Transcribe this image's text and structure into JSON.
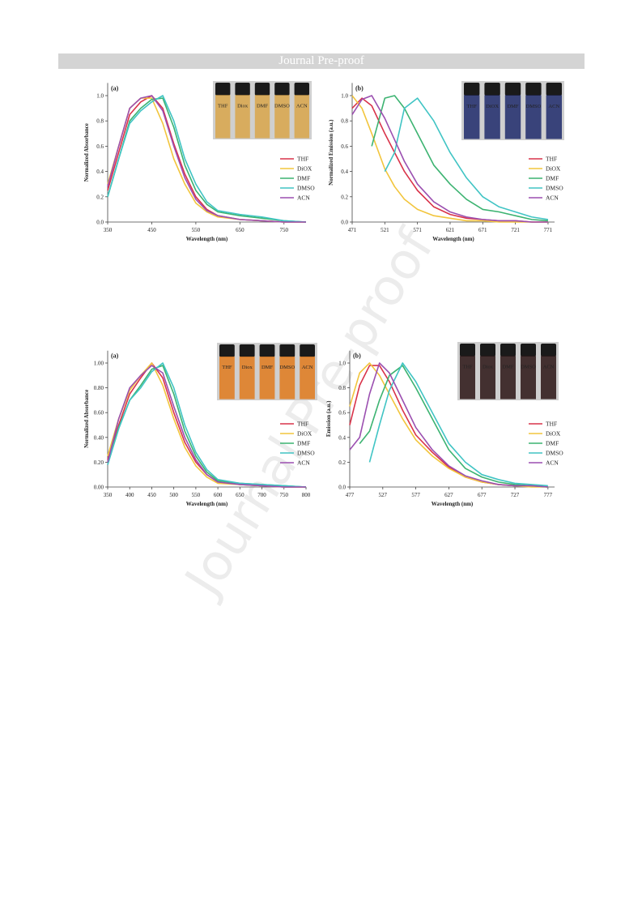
{
  "header": "Journal Pre-proof",
  "watermark": "Journal Pre-proof",
  "chart_data": [
    {
      "type": "line",
      "panel": "(a)",
      "x_label": "Wavelength (nm)",
      "y_label": "Normalized Absorbance",
      "inset_labels": [
        "THF",
        "Diox",
        "DMF",
        "DMSO",
        "ACN"
      ],
      "inset_color": "#d9a64a",
      "x": [
        350,
        375,
        400,
        425,
        450,
        475,
        500,
        525,
        550,
        575,
        600,
        650,
        700,
        750,
        800
      ],
      "series": [
        {
          "name": "THF",
          "color": "#d9334a",
          "values": [
            0.25,
            0.55,
            0.85,
            0.95,
            1.0,
            0.9,
            0.62,
            0.38,
            0.2,
            0.1,
            0.05,
            0.02,
            0.01,
            0,
            0
          ]
        },
        {
          "name": "DiOX",
          "color": "#f2c53d",
          "values": [
            0.3,
            0.6,
            0.9,
            0.98,
            0.98,
            0.78,
            0.5,
            0.3,
            0.15,
            0.08,
            0.04,
            0.02,
            0.01,
            0,
            0
          ]
        },
        {
          "name": "DMF",
          "color": "#3cb371",
          "values": [
            0.2,
            0.5,
            0.8,
            0.9,
            0.97,
            0.98,
            0.75,
            0.45,
            0.25,
            0.14,
            0.08,
            0.05,
            0.03,
            0.01,
            0
          ]
        },
        {
          "name": "DMSO",
          "color": "#40c4c4",
          "values": [
            0.2,
            0.5,
            0.78,
            0.88,
            0.95,
            1.0,
            0.8,
            0.5,
            0.3,
            0.16,
            0.09,
            0.06,
            0.04,
            0.01,
            0
          ]
        },
        {
          "name": "ACN",
          "color": "#9b4fb0",
          "values": [
            0.28,
            0.6,
            0.9,
            0.98,
            1.0,
            0.88,
            0.6,
            0.35,
            0.18,
            0.09,
            0.05,
            0.02,
            0.01,
            0,
            0
          ]
        }
      ],
      "xlim": [
        350,
        800
      ],
      "xticks": [
        350,
        450,
        550,
        650,
        750
      ],
      "ylim": [
        0,
        1.1
      ],
      "yticks": [
        {
          "value": 0,
          "label": "0.0"
        },
        0.2,
        0.4,
        0.6,
        0.8,
        {
          "value": 1,
          "label": "1.0"
        }
      ],
      "legend": "right"
    },
    {
      "type": "line",
      "panel": "(b)",
      "x_label": "Wavelength (nm)",
      "y_label": "Normalized Emission (a.u.)",
      "inset_labels": [
        "THF",
        "DiOX",
        "DMF",
        "DMSO",
        "ACN"
      ],
      "inset_color": "#1f2a6b",
      "x": [
        471,
        486,
        501,
        521,
        536,
        551,
        571,
        596,
        621,
        646,
        671,
        696,
        721,
        746,
        771
      ],
      "series": [
        {
          "name": "THF",
          "color": "#d9334a",
          "values": [
            0.9,
            0.98,
            0.92,
            0.7,
            0.55,
            0.4,
            0.25,
            0.12,
            0.06,
            0.03,
            0.02,
            0.01,
            0.01,
            0,
            0
          ]
        },
        {
          "name": "DiOX",
          "color": "#f2c53d",
          "values": [
            1.0,
            0.9,
            0.7,
            0.42,
            0.28,
            0.18,
            0.1,
            0.05,
            0.03,
            0.01,
            0.01,
            0,
            0,
            0,
            0
          ]
        },
        {
          "name": "DMF",
          "color": "#3cb371",
          "values": [
            null,
            null,
            0.6,
            0.98,
            1.0,
            0.9,
            0.7,
            0.45,
            0.3,
            0.18,
            0.1,
            0.08,
            0.05,
            0.02,
            0.01
          ]
        },
        {
          "name": "DMSO",
          "color": "#40c4c4",
          "values": [
            null,
            null,
            null,
            0.4,
            0.55,
            0.9,
            0.98,
            0.8,
            0.55,
            0.35,
            0.2,
            0.12,
            0.08,
            0.04,
            0.02
          ]
        },
        {
          "name": "ACN",
          "color": "#9b4fb0",
          "values": [
            0.85,
            0.97,
            1.0,
            0.82,
            0.65,
            0.48,
            0.3,
            0.16,
            0.08,
            0.04,
            0.02,
            0.01,
            0.01,
            0,
            0
          ]
        }
      ],
      "xlim": [
        471,
        781
      ],
      "xticks": [
        471,
        521,
        571,
        621,
        671,
        721,
        771
      ],
      "ylim": [
        0,
        1.1
      ],
      "yticks": [
        {
          "value": 0,
          "label": "0.0"
        },
        0.2,
        0.4,
        0.6,
        0.8,
        {
          "value": 1,
          "label": "1.0"
        }
      ],
      "legend": "right"
    },
    {
      "type": "line",
      "panel": "(a)",
      "x_label": "Wavelength (nm)",
      "y_label": "Normalized Absorbance",
      "inset_labels": [
        "THF",
        "Diox",
        "DMF",
        "DMSO",
        "ACN"
      ],
      "inset_color": "#e07a1c",
      "x": [
        350,
        375,
        400,
        425,
        450,
        475,
        500,
        525,
        550,
        575,
        600,
        650,
        700,
        750,
        800
      ],
      "series": [
        {
          "name": "THF",
          "color": "#d9334a",
          "values": [
            0.22,
            0.5,
            0.75,
            0.88,
            1.0,
            0.88,
            0.6,
            0.36,
            0.2,
            0.1,
            0.04,
            0.02,
            0.01,
            0,
            0
          ]
        },
        {
          "name": "DiOX",
          "color": "#f2c53d",
          "values": [
            0.25,
            0.55,
            0.78,
            0.9,
            1.0,
            0.82,
            0.55,
            0.32,
            0.17,
            0.08,
            0.03,
            0.02,
            0.01,
            0,
            0
          ]
        },
        {
          "name": "DMF",
          "color": "#3cb371",
          "values": [
            0.18,
            0.48,
            0.7,
            0.82,
            0.95,
            0.98,
            0.75,
            0.45,
            0.25,
            0.12,
            0.05,
            0.03,
            0.02,
            0.01,
            0
          ]
        },
        {
          "name": "DMSO",
          "color": "#40c4c4",
          "values": [
            0.18,
            0.47,
            0.7,
            0.8,
            0.93,
            1.0,
            0.8,
            0.5,
            0.28,
            0.14,
            0.06,
            0.03,
            0.02,
            0.01,
            0
          ]
        },
        {
          "name": "ACN",
          "color": "#9b4fb0",
          "values": [
            0.2,
            0.55,
            0.8,
            0.9,
            0.98,
            0.92,
            0.65,
            0.4,
            0.22,
            0.1,
            0.04,
            0.02,
            0.01,
            0,
            0
          ]
        }
      ],
      "xlim": [
        350,
        800
      ],
      "xticks": [
        350,
        400,
        450,
        500,
        550,
        600,
        650,
        700,
        750,
        800
      ],
      "ylim": [
        0,
        1.1
      ],
      "yticks": [
        {
          "value": 0,
          "label": "0.00"
        },
        {
          "value": 0.2,
          "label": "0.20"
        },
        {
          "value": 0.4,
          "label": "0.40"
        },
        {
          "value": 0.6,
          "label": "0.60"
        },
        {
          "value": 0.8,
          "label": "0.80"
        },
        {
          "value": 1,
          "label": "1.00"
        }
      ],
      "legend": "right"
    },
    {
      "type": "line",
      "panel": "(b)",
      "x_label": "Wavelength (nm)",
      "y_label": "Emission (a.u.)",
      "inset_labels": [
        "THF",
        "Diox",
        "DMF",
        "DMSO",
        "ACN"
      ],
      "inset_color": "#2a1414",
      "x": [
        477,
        492,
        507,
        522,
        537,
        557,
        577,
        602,
        627,
        652,
        677,
        702,
        727,
        752,
        777
      ],
      "series": [
        {
          "name": "THF",
          "color": "#d9334a",
          "values": [
            0.5,
            0.82,
            0.98,
            0.98,
            0.85,
            0.62,
            0.42,
            0.28,
            0.16,
            0.08,
            0.04,
            0.02,
            0.01,
            0.01,
            0
          ]
        },
        {
          "name": "DiOX",
          "color": "#f2c53d",
          "values": [
            0.65,
            0.92,
            1.0,
            0.9,
            0.75,
            0.55,
            0.38,
            0.25,
            0.15,
            0.08,
            0.04,
            0.02,
            0.01,
            0,
            0
          ]
        },
        {
          "name": "DMF",
          "color": "#3cb371",
          "values": [
            null,
            0.35,
            0.45,
            0.7,
            0.9,
            0.98,
            0.8,
            0.55,
            0.3,
            0.15,
            0.08,
            0.04,
            0.02,
            0.01,
            0
          ]
        },
        {
          "name": "DMSO",
          "color": "#40c4c4",
          "values": [
            null,
            null,
            0.2,
            0.5,
            0.78,
            1.0,
            0.85,
            0.6,
            0.35,
            0.2,
            0.1,
            0.06,
            0.03,
            0.02,
            0.01
          ]
        },
        {
          "name": "ACN",
          "color": "#9b4fb0",
          "values": [
            0.3,
            0.4,
            0.75,
            1.0,
            0.92,
            0.7,
            0.48,
            0.3,
            0.17,
            0.09,
            0.05,
            0.02,
            0.01,
            0.01,
            0
          ]
        }
      ],
      "xlim": [
        477,
        787
      ],
      "xticks": [
        477,
        527,
        577,
        627,
        677,
        727,
        777
      ],
      "ylim": [
        0,
        1.1
      ],
      "yticks": [
        {
          "value": 0,
          "label": "0.0"
        },
        0.2,
        0.4,
        0.6,
        0.8,
        {
          "value": 1,
          "label": "1.0"
        }
      ],
      "legend": "right"
    }
  ]
}
